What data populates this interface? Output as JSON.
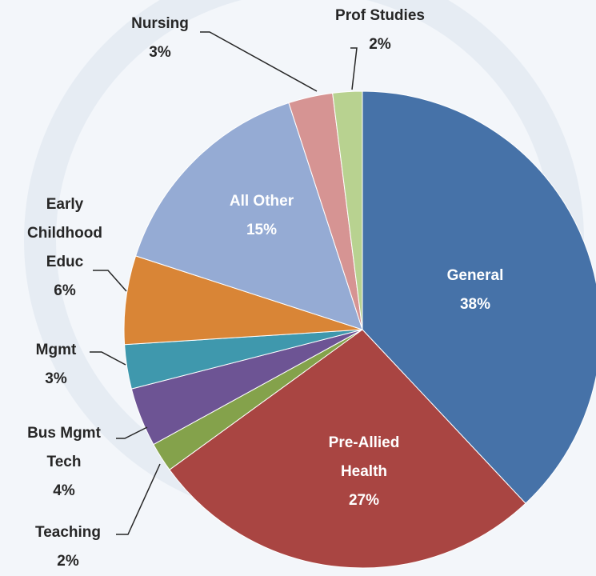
{
  "chart_data": {
    "type": "pie",
    "categories": [
      "General",
      "Pre-Allied Health",
      "Teaching",
      "Bus Mgmt Tech",
      "Mgmt",
      "Early Childhood Educ",
      "All Other",
      "Nursing",
      "Prof Studies"
    ],
    "values": [
      38,
      27,
      2,
      4,
      3,
      6,
      15,
      3,
      2
    ],
    "value_labels": [
      "38%",
      "27%",
      "2%",
      "4%",
      "3%",
      "6%",
      "15%",
      "3%",
      "2%"
    ],
    "colors": [
      "#4672a8",
      "#a94542",
      "#84a24b",
      "#6d5494",
      "#3f98ad",
      "#d98536",
      "#95abd4",
      "#d69493",
      "#b8d290"
    ]
  }
}
